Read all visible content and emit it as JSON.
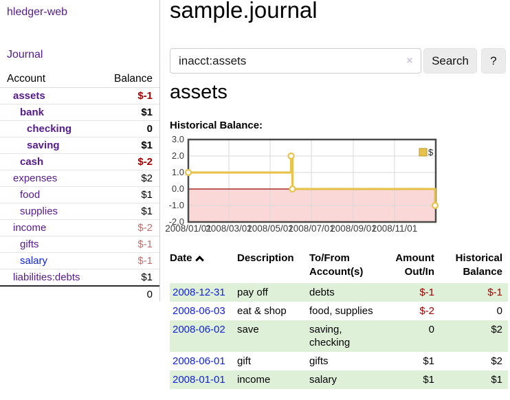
{
  "colors": {
    "link_purple": "#551a8b",
    "link_blue": "#1122dd",
    "negative_strong": "#a40000",
    "negative_soft": "#c07070",
    "row_highlight_green": "#dff0d8",
    "chart_line_gold": "#e7c34e",
    "chart_negative_region_pink": "#fbd8d8",
    "chart_zero_line_red": "#990000"
  },
  "sidebar": {
    "brand": "hledger-web",
    "nav_journal": "Journal",
    "col_account": "Account",
    "col_balance": "Balance",
    "accounts": [
      {
        "name": "assets",
        "balance": "$-1",
        "depth": 1,
        "matched": true,
        "link": "purple"
      },
      {
        "name": "bank",
        "balance": "$1",
        "depth": 2,
        "matched": true,
        "link": "purple"
      },
      {
        "name": "checking",
        "balance": "0",
        "depth": 3,
        "matched": true,
        "link": "purple"
      },
      {
        "name": "saving",
        "balance": "$1",
        "depth": 3,
        "matched": true,
        "link": "purple"
      },
      {
        "name": "cash",
        "balance": "$-2",
        "depth": 2,
        "matched": true,
        "link": "purple"
      },
      {
        "name": "expenses",
        "balance": "$2",
        "depth": 1,
        "matched": false,
        "link": "purple"
      },
      {
        "name": "food",
        "balance": "$1",
        "depth": 2,
        "matched": false,
        "link": "purple"
      },
      {
        "name": "supplies",
        "balance": "$1",
        "depth": 2,
        "matched": false,
        "link": "purple"
      },
      {
        "name": "income",
        "balance": "$-2",
        "depth": 1,
        "matched": false,
        "link": "purple"
      },
      {
        "name": "gifts",
        "balance": "$-1",
        "depth": 2,
        "matched": false,
        "link": "purple"
      },
      {
        "name": "salary",
        "balance": "$-1",
        "depth": 2,
        "matched": false,
        "link": "blue"
      },
      {
        "name": "liabilities:debts",
        "balance": "$1",
        "depth": 1,
        "matched": false,
        "link": "purple"
      }
    ],
    "total": "0"
  },
  "main": {
    "title": "sample.journal",
    "search": {
      "value": "inacct:assets",
      "clear_icon": "×",
      "button_label": "Search",
      "help_label": "?"
    },
    "account_heading": "assets",
    "chart_label": "Historical Balance:"
  },
  "chart_data": {
    "type": "line",
    "step": true,
    "title": "Historical Balance",
    "legend": {
      "label": "$",
      "position": "top-right"
    },
    "points": [
      {
        "date": "2008-01-01",
        "value": 1
      },
      {
        "date": "2008-06-01",
        "value": 2
      },
      {
        "date": "2008-06-03",
        "value": 0
      },
      {
        "date": "2008-12-31",
        "value": -1
      }
    ],
    "x_ticks": [
      {
        "date": "2008-01-01",
        "label": "2008/01/01"
      },
      {
        "date": "2008-03-01",
        "label": "2008/03/01"
      },
      {
        "date": "2008-05-01",
        "label": "2008/05/01"
      },
      {
        "date": "2008-07-01",
        "label": "2008/07/01"
      },
      {
        "date": "2008-09-01",
        "label": "2008/09/01"
      },
      {
        "date": "2008-11-01",
        "label": "2008/11/01"
      }
    ],
    "y_ticks": [
      {
        "value": 3,
        "label": "3.0"
      },
      {
        "value": 2,
        "label": "2.0"
      },
      {
        "value": 1,
        "label": "1.0"
      },
      {
        "value": 0,
        "label": "0.0"
      },
      {
        "value": -1,
        "label": "-1.0"
      },
      {
        "value": -2,
        "label": "-2.0"
      }
    ],
    "ylim": [
      -2,
      3
    ],
    "xlim": [
      "2008-01-01",
      "2009-01-01"
    ],
    "grid": true
  },
  "register": {
    "headers": [
      "Date",
      "Description",
      "To/From Account(s)",
      "Amount Out/In",
      "Historical Balance"
    ],
    "sort": {
      "column": "Date",
      "direction": "asc"
    },
    "rows": [
      {
        "date": "2008-12-31",
        "description": "pay off",
        "accounts": "debts",
        "amount": "$-1",
        "balance": "$-1",
        "highlight": true
      },
      {
        "date": "2008-06-03",
        "description": "eat & shop",
        "accounts": "food, supplies",
        "amount": "$-2",
        "balance": "0",
        "highlight": false
      },
      {
        "date": "2008-06-02",
        "description": "save",
        "accounts": "saving, checking",
        "amount": "0",
        "balance": "$2",
        "highlight": true
      },
      {
        "date": "2008-06-01",
        "description": "gift",
        "accounts": "gifts",
        "amount": "$1",
        "balance": "$2",
        "highlight": false
      },
      {
        "date": "2008-01-01",
        "description": "income",
        "accounts": "salary",
        "amount": "$1",
        "balance": "$1",
        "highlight": true
      }
    ]
  }
}
